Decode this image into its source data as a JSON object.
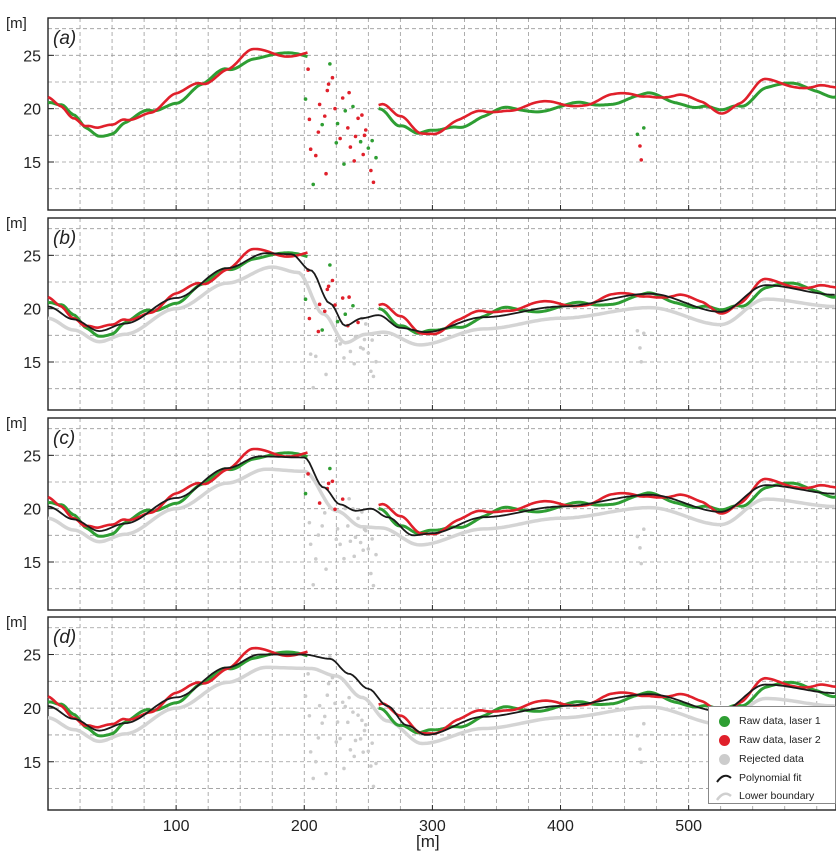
{
  "chart_data": {
    "type": "scatter",
    "x_unit_label": "[m]",
    "y_unit_label": "[m]",
    "xlim": [
      0,
      615
    ],
    "ylim": [
      10.5,
      28.5
    ],
    "x_ticks": [
      100,
      200,
      300,
      400,
      500
    ],
    "y_ticks": [
      15,
      20,
      25
    ],
    "grid": true,
    "legend_position": "bottom-right",
    "colors": {
      "laser1": "#2e9e33",
      "laser2": "#e0202b",
      "rejected": "#cccccc",
      "fit": "#1a1a1a",
      "boundary": "#d4d4d4"
    },
    "legend": [
      {
        "key": "laser1",
        "label": "Raw data, laser 1",
        "symbol": "dot"
      },
      {
        "key": "laser2",
        "label": "Raw data, laser 2",
        "symbol": "dot"
      },
      {
        "key": "rejected",
        "label": "Rejected data",
        "symbol": "dot"
      },
      {
        "key": "fit",
        "label": "Polynomial fit",
        "symbol": "line"
      },
      {
        "key": "boundary",
        "label": "Lower boundary",
        "symbol": "line"
      }
    ],
    "profile": [
      [
        0,
        20.7
      ],
      [
        10,
        20.2
      ],
      [
        20,
        19.3
      ],
      [
        30,
        18.4
      ],
      [
        40,
        17.9
      ],
      [
        50,
        18.0
      ],
      [
        60,
        18.7
      ],
      [
        80,
        19.8
      ],
      [
        100,
        21.0
      ],
      [
        120,
        22.2
      ],
      [
        140,
        23.8
      ],
      [
        160,
        25.1
      ],
      [
        180,
        25.0
      ],
      [
        200,
        25.2
      ]
    ],
    "profile_right": [
      [
        260,
        20.3
      ],
      [
        275,
        18.8
      ],
      [
        290,
        17.6
      ],
      [
        300,
        17.8
      ],
      [
        320,
        18.7
      ],
      [
        340,
        19.4
      ],
      [
        360,
        20.0
      ],
      [
        380,
        20.2
      ],
      [
        400,
        20.2
      ],
      [
        420,
        20.5
      ],
      [
        440,
        20.9
      ],
      [
        460,
        21.1
      ],
      [
        470,
        21.3
      ],
      [
        490,
        21.0
      ],
      [
        510,
        20.3
      ],
      [
        525,
        19.7
      ],
      [
        540,
        20.5
      ],
      [
        560,
        22.3
      ],
      [
        580,
        22.2
      ],
      [
        600,
        22.0
      ],
      [
        615,
        21.5
      ]
    ],
    "scatter_ab": [
      [
        201,
        20.9
      ],
      [
        204,
        19.0
      ],
      [
        205,
        16.2
      ],
      [
        207,
        12.9
      ],
      [
        209,
        15.6
      ],
      [
        212,
        20.4
      ],
      [
        214,
        18.5
      ],
      [
        216,
        19.3
      ],
      [
        218,
        21.7
      ],
      [
        220,
        24.2
      ],
      [
        222,
        22.9
      ],
      [
        224,
        20.0
      ],
      [
        226,
        18.6
      ],
      [
        228,
        17.2
      ],
      [
        230,
        21.0
      ],
      [
        232,
        19.8
      ],
      [
        234,
        18.2
      ],
      [
        236,
        16.4
      ],
      [
        238,
        20.2
      ],
      [
        240,
        17.4
      ],
      [
        242,
        19.1
      ],
      [
        244,
        16.9
      ],
      [
        246,
        15.7
      ],
      [
        248,
        18.0
      ],
      [
        250,
        16.3
      ],
      [
        252,
        14.2
      ],
      [
        254,
        13.1
      ],
      [
        256,
        15.4
      ],
      [
        203,
        23.7
      ],
      [
        211,
        17.8
      ],
      [
        225,
        16.8
      ],
      [
        239,
        15.1
      ],
      [
        247,
        17.5
      ],
      [
        231,
        14.8
      ],
      [
        217,
        13.9
      ],
      [
        245,
        19.4
      ],
      [
        253,
        17.0
      ],
      [
        219,
        22.3
      ],
      [
        235,
        21.5
      ]
    ],
    "scatter_right": [
      [
        460,
        17.6
      ],
      [
        462,
        16.5
      ],
      [
        463,
        15.2
      ],
      [
        465,
        18.2
      ]
    ],
    "panels": [
      {
        "label": "(a)",
        "fit": [],
        "boundary": []
      },
      {
        "label": "(b)",
        "fit": [
          [
            0,
            20.2
          ],
          [
            20,
            19.0
          ],
          [
            40,
            17.9
          ],
          [
            60,
            18.6
          ],
          [
            100,
            21.0
          ],
          [
            140,
            23.8
          ],
          [
            170,
            25.2
          ],
          [
            190,
            25.1
          ],
          [
            205,
            23.6
          ],
          [
            220,
            20.5
          ],
          [
            232,
            18.4
          ],
          [
            245,
            19.1
          ],
          [
            258,
            19.4
          ],
          [
            275,
            18.2
          ],
          [
            295,
            17.8
          ],
          [
            340,
            19.2
          ],
          [
            400,
            20.2
          ],
          [
            470,
            21.4
          ],
          [
            525,
            19.7
          ],
          [
            560,
            22.2
          ],
          [
            615,
            21.3
          ]
        ],
        "boundary": [
          [
            0,
            19.1
          ],
          [
            20,
            18.0
          ],
          [
            40,
            16.9
          ],
          [
            60,
            17.6
          ],
          [
            100,
            20.0
          ],
          [
            140,
            22.4
          ],
          [
            175,
            23.9
          ],
          [
            195,
            23.4
          ],
          [
            215,
            19.5
          ],
          [
            232,
            16.8
          ],
          [
            248,
            17.6
          ],
          [
            262,
            17.8
          ],
          [
            290,
            16.6
          ],
          [
            340,
            18.1
          ],
          [
            400,
            19.1
          ],
          [
            470,
            20.1
          ],
          [
            525,
            18.5
          ],
          [
            560,
            20.9
          ],
          [
            615,
            20.2
          ]
        ]
      },
      {
        "label": "(c)",
        "fit": [
          [
            0,
            20.2
          ],
          [
            20,
            19.0
          ],
          [
            40,
            17.9
          ],
          [
            60,
            18.6
          ],
          [
            100,
            21.0
          ],
          [
            140,
            23.8
          ],
          [
            165,
            24.9
          ],
          [
            200,
            24.8
          ],
          [
            215,
            22.0
          ],
          [
            228,
            20.4
          ],
          [
            240,
            19.8
          ],
          [
            252,
            20.0
          ],
          [
            265,
            19.2
          ],
          [
            285,
            17.5
          ],
          [
            300,
            17.7
          ],
          [
            340,
            19.2
          ],
          [
            400,
            20.2
          ],
          [
            470,
            21.3
          ],
          [
            525,
            19.7
          ],
          [
            560,
            22.2
          ],
          [
            615,
            21.4
          ]
        ],
        "boundary": [
          [
            0,
            19.1
          ],
          [
            20,
            18.0
          ],
          [
            40,
            16.9
          ],
          [
            60,
            17.6
          ],
          [
            100,
            20.0
          ],
          [
            140,
            22.4
          ],
          [
            170,
            23.7
          ],
          [
            200,
            23.5
          ],
          [
            225,
            19.8
          ],
          [
            245,
            18.3
          ],
          [
            260,
            18.2
          ],
          [
            290,
            16.6
          ],
          [
            340,
            18.1
          ],
          [
            400,
            19.1
          ],
          [
            470,
            20.1
          ],
          [
            525,
            18.5
          ],
          [
            560,
            20.9
          ],
          [
            615,
            20.2
          ]
        ]
      },
      {
        "label": "(d)",
        "fit": [
          [
            0,
            20.2
          ],
          [
            20,
            19.0
          ],
          [
            40,
            17.9
          ],
          [
            60,
            18.6
          ],
          [
            100,
            21.0
          ],
          [
            140,
            23.8
          ],
          [
            165,
            25.0
          ],
          [
            200,
            25.0
          ],
          [
            220,
            24.6
          ],
          [
            235,
            23.2
          ],
          [
            250,
            21.8
          ],
          [
            265,
            20.2
          ],
          [
            280,
            18.4
          ],
          [
            295,
            17.5
          ],
          [
            340,
            19.2
          ],
          [
            400,
            20.2
          ],
          [
            470,
            21.3
          ],
          [
            525,
            19.7
          ],
          [
            560,
            22.2
          ],
          [
            615,
            21.4
          ]
        ],
        "boundary": [
          [
            0,
            19.1
          ],
          [
            20,
            18.0
          ],
          [
            40,
            16.9
          ],
          [
            60,
            17.6
          ],
          [
            100,
            20.0
          ],
          [
            140,
            22.4
          ],
          [
            170,
            23.8
          ],
          [
            205,
            23.7
          ],
          [
            225,
            23.0
          ],
          [
            245,
            21.0
          ],
          [
            265,
            18.8
          ],
          [
            292,
            16.7
          ],
          [
            340,
            18.1
          ],
          [
            400,
            19.1
          ],
          [
            470,
            20.1
          ],
          [
            525,
            18.5
          ],
          [
            560,
            20.9
          ],
          [
            615,
            20.2
          ]
        ]
      }
    ]
  }
}
